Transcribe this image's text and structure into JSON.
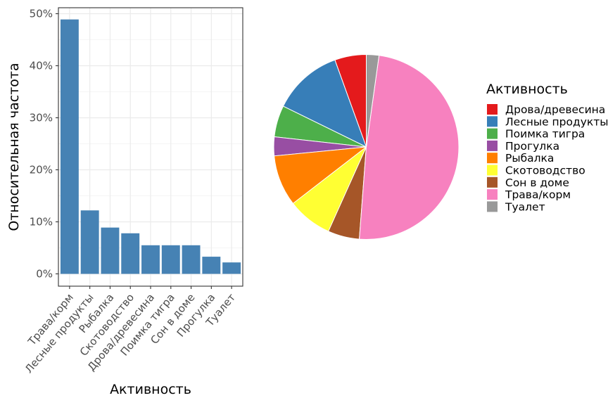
{
  "chart_data": [
    {
      "type": "bar",
      "categories": [
        "Трава/корм",
        "Лесные продукты",
        "Рыбалка",
        "Скотоводство",
        "Дрова/древесина",
        "Поимка тигра",
        "Сон в доме",
        "Прогулка",
        "Туалет"
      ],
      "values": [
        0.489,
        0.122,
        0.089,
        0.078,
        0.055,
        0.055,
        0.055,
        0.033,
        0.022
      ],
      "xlabel": "Активность",
      "ylabel": "Относительная частота",
      "ylim": [
        0,
        0.5
      ],
      "yticks": [
        "0%",
        "10%",
        "20%",
        "30%",
        "40%",
        "50%"
      ],
      "grid": true,
      "bar_color": "#4682b4"
    },
    {
      "type": "pie",
      "legend_title": "Активность",
      "legend_position": "right",
      "slices": [
        {
          "label": "Дрова/древесина",
          "value": 0.055,
          "color": "#e41a1c"
        },
        {
          "label": "Лесные продукты",
          "value": 0.122,
          "color": "#377eb8"
        },
        {
          "label": "Поимка тигра",
          "value": 0.055,
          "color": "#4daf4a"
        },
        {
          "label": "Прогулка",
          "value": 0.033,
          "color": "#984ea3"
        },
        {
          "label": "Рыбалка",
          "value": 0.089,
          "color": "#ff7f00"
        },
        {
          "label": "Скотоводство",
          "value": 0.078,
          "color": "#ffff33"
        },
        {
          "label": "Сон в доме",
          "value": 0.055,
          "color": "#a65628"
        },
        {
          "label": "Трава/корм",
          "value": 0.489,
          "color": "#f781bf"
        },
        {
          "label": "Туалет",
          "value": 0.022,
          "color": "#999999"
        }
      ]
    }
  ]
}
